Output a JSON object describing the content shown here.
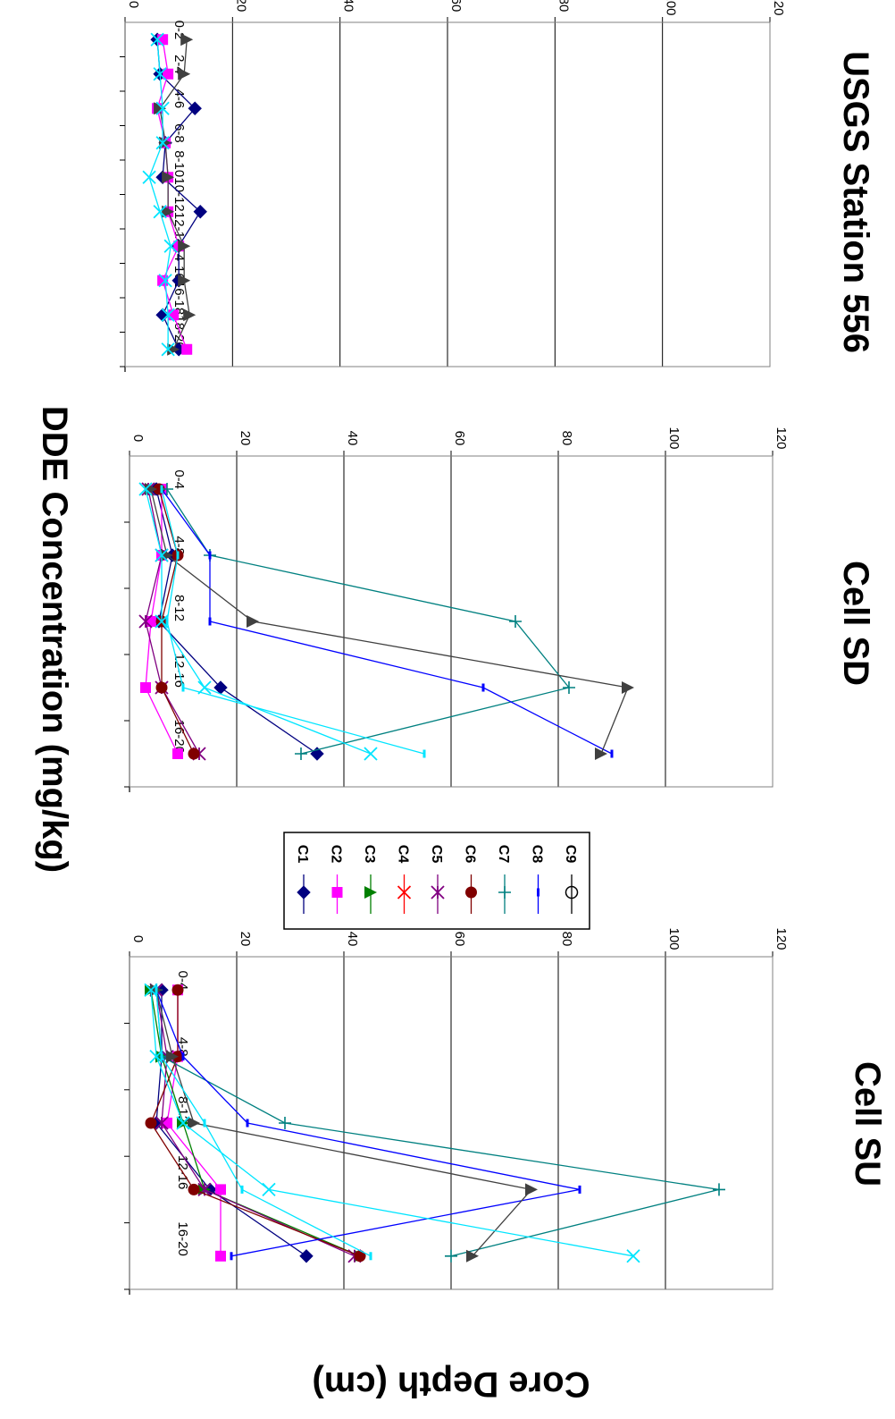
{
  "figure": {
    "ylabel": "DDE Concentration (mg/kg)",
    "xlabel": "Core Depth (cm)"
  },
  "colors": {
    "C1": "#000080",
    "C2": "#ff00ff",
    "C3": "#008000",
    "C4": "#ff0000",
    "C5": "#800080",
    "C6": "#800000",
    "C7": "#008080",
    "C8": "#0000ff",
    "C9": "#000000",
    "gray": "#404040",
    "cyan": "#00e5ff"
  },
  "legend": {
    "entries": [
      {
        "name": "C1",
        "marker": "diamond-filled"
      },
      {
        "name": "C2",
        "marker": "square-filled"
      },
      {
        "name": "C3",
        "marker": "triangle-filled"
      },
      {
        "name": "C4",
        "marker": "x"
      },
      {
        "name": "C5",
        "marker": "star"
      },
      {
        "name": "C6",
        "marker": "circle-filled"
      },
      {
        "name": "C7",
        "marker": "plus"
      },
      {
        "name": "C8",
        "marker": "dash"
      },
      {
        "name": "C9",
        "marker": "circle-open"
      }
    ]
  },
  "chart_data": [
    {
      "type": "line",
      "title": "USGS Station 556",
      "categories": [
        "0-2",
        "2-4",
        "4-6",
        "6-8",
        "8-10",
        "10-12",
        "12-14",
        "14-16",
        "16-18",
        "18-20"
      ],
      "ylim": [
        0,
        120
      ],
      "yticks": [
        0,
        20,
        40,
        60,
        80,
        100,
        120
      ],
      "grid": true,
      "series": [
        {
          "color": "#000080",
          "marker": "diamond-filled",
          "values": [
            6,
            6.5,
            13,
            7.5,
            7,
            14,
            10,
            10,
            7,
            10
          ]
        },
        {
          "color": "#ff00ff",
          "marker": "square-filled",
          "values": [
            7,
            8,
            6,
            7.5,
            8,
            8,
            10,
            7,
            9,
            11.5
          ]
        },
        {
          "color": "#404040",
          "marker": "triangle-filled",
          "values": [
            11.5,
            11,
            6.5,
            7.5,
            8,
            8,
            11,
            11,
            12,
            9
          ]
        },
        {
          "color": "#00e5ff",
          "marker": "x",
          "values": [
            6,
            6.5,
            7,
            7,
            4.5,
            6.5,
            8.5,
            7.5,
            8,
            8
          ]
        }
      ]
    },
    {
      "type": "line",
      "title": "Cell SD",
      "categories": [
        "0-4",
        "4-8",
        "8-12",
        "12-16",
        "16-20"
      ],
      "ylim": [
        0,
        120
      ],
      "yticks": [
        0,
        20,
        40,
        60,
        80,
        100,
        120
      ],
      "grid": true,
      "series": [
        {
          "color": "#000080",
          "marker": "diamond-filled",
          "values": [
            5,
            8,
            5.5,
            17,
            35
          ]
        },
        {
          "color": "#ff00ff",
          "marker": "square-filled",
          "values": [
            6,
            6,
            4,
            3,
            9
          ]
        },
        {
          "color": "#800080",
          "marker": "star",
          "values": [
            3.5,
            6,
            3,
            6,
            13
          ]
        },
        {
          "color": "#800000",
          "marker": "circle-filled",
          "values": [
            5.5,
            9,
            6,
            6,
            12
          ]
        },
        {
          "color": "#008080",
          "marker": "plus",
          "values": [
            7,
            15,
            72,
            82,
            32
          ]
        },
        {
          "color": "#0000ff",
          "marker": "dash",
          "values": [
            6,
            15,
            15,
            66,
            90
          ]
        },
        {
          "color": "#404040",
          "marker": "triangle-filled",
          "values": [
            4,
            7,
            23,
            93,
            88
          ]
        },
        {
          "color": "#00e5ff",
          "marker": "x",
          "values": [
            3,
            6,
            6,
            14,
            45
          ]
        },
        {
          "color": "#00e5ff",
          "marker": "dash",
          "values": [
            6,
            9,
            7,
            10,
            55
          ]
        }
      ]
    },
    {
      "type": "line",
      "title": "Cell SU",
      "categories": [
        "0-4",
        "4-8",
        "8-12",
        "12-16",
        "16-20"
      ],
      "ylim": [
        0,
        120
      ],
      "yticks": [
        0,
        20,
        40,
        60,
        80,
        100,
        120
      ],
      "grid": true,
      "series": [
        {
          "color": "#000080",
          "marker": "diamond-filled",
          "values": [
            6,
            6,
            5,
            15,
            33
          ]
        },
        {
          "color": "#ff00ff",
          "marker": "square-filled",
          "values": [
            9,
            9,
            7,
            17,
            17
          ]
        },
        {
          "color": "#008000",
          "marker": "triangle-filled",
          "values": [
            4,
            6,
            10,
            14,
            43
          ]
        },
        {
          "color": "#800080",
          "marker": "star",
          "values": [
            5,
            7,
            6,
            14,
            42
          ]
        },
        {
          "color": "#800000",
          "marker": "circle-filled",
          "values": [
            9,
            9,
            4,
            12,
            43
          ]
        },
        {
          "color": "#008080",
          "marker": "plus",
          "values": [
            5,
            6,
            29,
            110,
            60
          ]
        },
        {
          "color": "#0000ff",
          "marker": "dash",
          "values": [
            5,
            10,
            22,
            84,
            19
          ]
        },
        {
          "color": "#404040",
          "marker": "triangle-filled",
          "values": [
            5,
            8,
            12,
            75,
            64
          ]
        },
        {
          "color": "#00e5ff",
          "marker": "x",
          "values": [
            4,
            5,
            10,
            26,
            94
          ]
        },
        {
          "color": "#00e5ff",
          "marker": "dash",
          "values": [
            5,
            6,
            14,
            21,
            45
          ]
        }
      ]
    }
  ]
}
